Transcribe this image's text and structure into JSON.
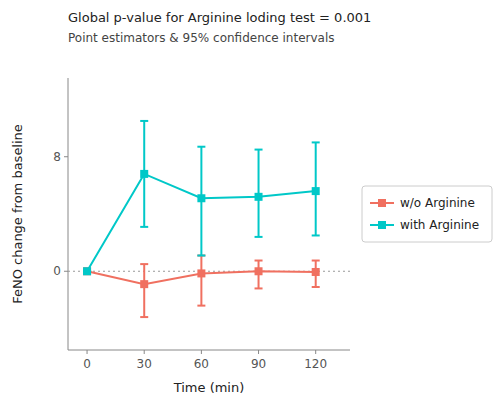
{
  "chart_data": {
    "type": "line",
    "title": "Global p-value for Arginine loding test = 0.001",
    "subtitle": "Point estimators & 95% confidence intervals",
    "x_label": "Time (min)",
    "y_label": "FeNO change from baseline",
    "x": [
      0,
      30,
      60,
      90,
      120
    ],
    "series": [
      {
        "name": "w/o Arginine",
        "color": "#F07060",
        "marker": "square",
        "values": [
          0,
          -0.9,
          -0.15,
          0.0,
          -0.05
        ],
        "lower": [
          0,
          -3.2,
          -2.4,
          -1.2,
          -1.1
        ],
        "upper": [
          0,
          0.5,
          1.1,
          0.75,
          0.75
        ]
      },
      {
        "name": "with Arginine",
        "color": "#00C8C8",
        "marker": "square",
        "values": [
          0,
          6.8,
          5.1,
          5.2,
          5.6
        ],
        "lower": [
          0,
          3.1,
          1.1,
          2.4,
          2.5
        ],
        "upper": [
          0,
          10.5,
          8.7,
          8.5,
          9.0
        ]
      }
    ],
    "xlim": [
      -10,
      138
    ],
    "xticks": [
      0,
      30,
      60,
      90,
      120
    ],
    "ylim": [
      -5.5,
      13.5
    ],
    "yticks": [
      0,
      8
    ],
    "reference_line": {
      "y": 0,
      "color": "#999999",
      "line_style": "dotted"
    },
    "grid": false,
    "legend": "right"
  }
}
